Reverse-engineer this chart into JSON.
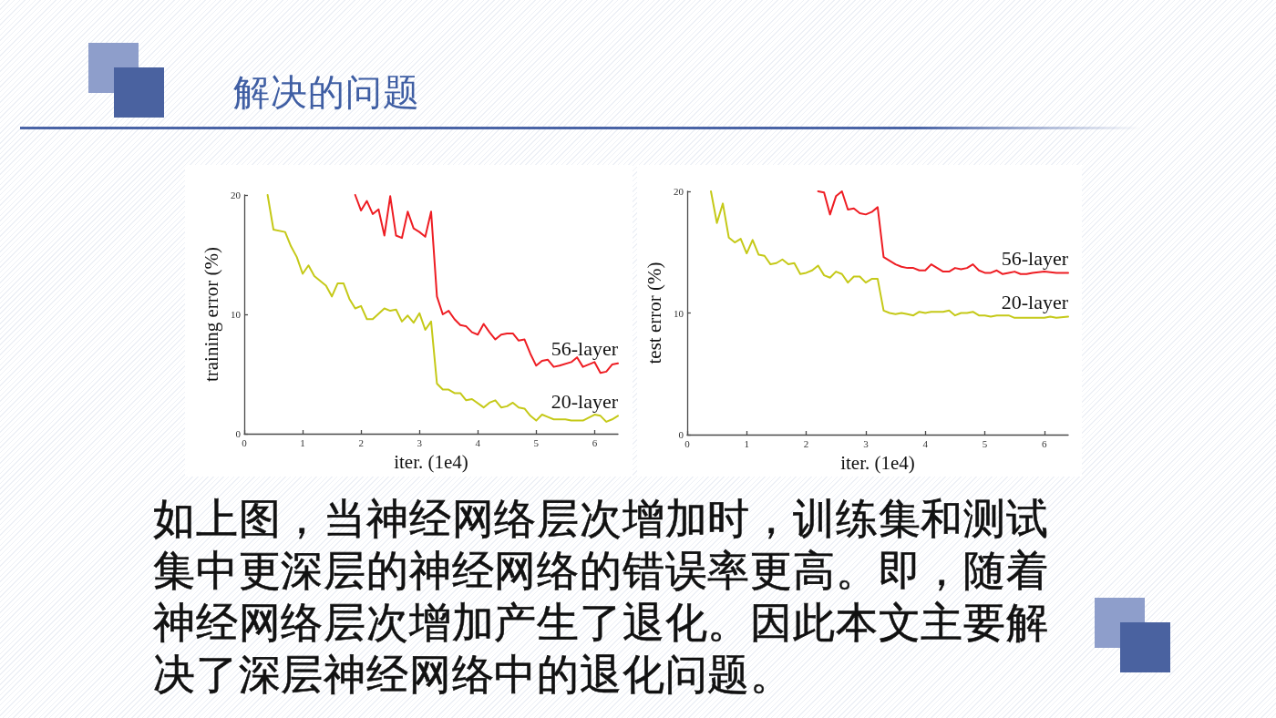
{
  "chart_data": [
    {
      "type": "line",
      "title": "解决的问题",
      "xlabel": "iter. (1e4)",
      "ylabel": "training error (%)",
      "xlim": [
        0,
        6.4
      ],
      "xticks": [
        0,
        1,
        2,
        3,
        4,
        5,
        6
      ],
      "ylim": [
        0,
        20
      ],
      "yticks": [
        0,
        10,
        20
      ],
      "grid": false,
      "legend": false,
      "marker": "none",
      "line_style": "solid",
      "series": [
        {
          "name": "56-layer",
          "color": "#ee1d23",
          "x": [
            1.9,
            2.0,
            2.1,
            2.2,
            2.3,
            2.4,
            2.5,
            2.6,
            2.7,
            2.8,
            2.9,
            3.0,
            3.1,
            3.2,
            3.3,
            3.4,
            3.5,
            3.6,
            3.7,
            3.8,
            3.9,
            4.0,
            4.1,
            4.2,
            4.3,
            4.4,
            4.5,
            4.6,
            4.7,
            4.8,
            4.9,
            5.0,
            5.1,
            5.2,
            5.3,
            5.4,
            5.6,
            5.7,
            5.8,
            6.0,
            6.1,
            6.2,
            6.3,
            6.4
          ],
          "values": [
            20,
            18.7,
            19.5,
            18.4,
            18.8,
            16.6,
            19.9,
            16.6,
            16.4,
            18.6,
            17.2,
            16.9,
            16.5,
            18.6,
            11.5,
            10.0,
            10.3,
            9.6,
            9.1,
            9.0,
            8.5,
            8.3,
            9.2,
            8.5,
            7.9,
            8.3,
            8.4,
            8.4,
            7.8,
            7.9,
            6.7,
            5.7,
            6.1,
            6.2,
            5.6,
            5.7,
            6.0,
            6.4,
            5.6,
            6.0,
            5.1,
            5.2,
            5.8,
            5.9
          ]
        },
        {
          "name": "20-layer",
          "color": "#c5c918",
          "x": [
            0.4,
            0.5,
            0.7,
            0.8,
            0.9,
            1.0,
            1.1,
            1.2,
            1.4,
            1.5,
            1.6,
            1.7,
            1.8,
            1.9,
            2.0,
            2.1,
            2.2,
            2.4,
            2.5,
            2.6,
            2.7,
            2.8,
            2.9,
            3.0,
            3.1,
            3.2,
            3.3,
            3.4,
            3.5,
            3.6,
            3.7,
            3.8,
            3.9,
            4.1,
            4.2,
            4.3,
            4.4,
            4.5,
            4.6,
            4.7,
            4.8,
            4.9,
            5.0,
            5.1,
            5.2,
            5.3,
            5.5,
            5.6,
            5.8,
            6.0,
            6.1,
            6.2,
            6.3,
            6.4
          ],
          "values": [
            20,
            17.1,
            16.9,
            15.7,
            14.8,
            13.4,
            14.1,
            13.2,
            12.4,
            11.5,
            12.6,
            12.6,
            11.3,
            10.5,
            10.7,
            9.6,
            9.6,
            10.5,
            10.3,
            10.4,
            9.4,
            9.9,
            9.3,
            10.1,
            8.7,
            9.4,
            4.2,
            3.7,
            3.7,
            3.4,
            3.4,
            2.8,
            2.9,
            2.2,
            2.6,
            2.8,
            2.2,
            2.3,
            2.6,
            2.2,
            2.1,
            1.5,
            1.1,
            1.6,
            1.4,
            1.2,
            1.2,
            1.1,
            1.1,
            1.6,
            1.5,
            1.0,
            1.2,
            1.5
          ]
        }
      ]
    },
    {
      "type": "line",
      "xlabel": "iter. (1e4)",
      "ylabel": "test error (%)",
      "xlim": [
        0,
        6.4
      ],
      "xticks": [
        0,
        1,
        2,
        3,
        4,
        5,
        6
      ],
      "ylim": [
        0,
        20
      ],
      "yticks": [
        0,
        10,
        20
      ],
      "grid": false,
      "legend": false,
      "marker": "none",
      "line_style": "solid",
      "annotations": [
        "如上图，当神经网络层次增加时，训练集和测试集中更深层的神经网络的错误率更高。即，随着神经网络层次增加产生了退化。因此本文主要解决了深层神经网络中的退化问题。"
      ],
      "series": [
        {
          "name": "56-layer",
          "color": "#ee1d23",
          "x": [
            2.2,
            2.3,
            2.4,
            2.5,
            2.6,
            2.7,
            2.8,
            2.9,
            3.0,
            3.1,
            3.2,
            3.3,
            3.4,
            3.5,
            3.6,
            3.7,
            3.8,
            3.9,
            4.0,
            4.1,
            4.2,
            4.3,
            4.4,
            4.5,
            4.6,
            4.7,
            4.8,
            4.9,
            5.0,
            5.1,
            5.2,
            5.3,
            5.4,
            5.5,
            5.6,
            5.7,
            5.8,
            6.0,
            6.2,
            6.4
          ],
          "values": [
            20,
            19.9,
            18.1,
            19.6,
            20.0,
            18.5,
            18.6,
            18.2,
            18.1,
            18.3,
            18.7,
            14.6,
            14.3,
            14.0,
            13.8,
            13.7,
            13.7,
            13.5,
            13.5,
            14.0,
            13.7,
            13.4,
            13.4,
            13.7,
            13.6,
            13.7,
            14.0,
            13.5,
            13.3,
            13.3,
            13.5,
            13.2,
            13.3,
            13.4,
            13.2,
            13.2,
            13.3,
            13.4,
            13.3,
            13.3
          ]
        },
        {
          "name": "20-layer",
          "color": "#c5c918",
          "x": [
            0.4,
            0.5,
            0.6,
            0.7,
            0.8,
            0.9,
            1.0,
            1.1,
            1.2,
            1.3,
            1.4,
            1.5,
            1.6,
            1.7,
            1.8,
            1.9,
            2.0,
            2.1,
            2.2,
            2.3,
            2.4,
            2.5,
            2.6,
            2.7,
            2.8,
            2.9,
            3.0,
            3.1,
            3.2,
            3.3,
            3.4,
            3.5,
            3.6,
            3.7,
            3.8,
            3.9,
            4.0,
            4.1,
            4.2,
            4.3,
            4.4,
            4.5,
            4.6,
            4.7,
            4.8,
            4.9,
            5.0,
            5.1,
            5.2,
            5.3,
            5.4,
            5.5,
            5.7,
            5.9,
            6.0,
            6.1,
            6.2,
            6.4
          ],
          "values": [
            20,
            17.4,
            19.0,
            16.2,
            15.8,
            16.1,
            14.9,
            16.0,
            14.8,
            14.7,
            14.0,
            14.1,
            14.4,
            14.0,
            14.1,
            13.2,
            13.3,
            13.5,
            13.9,
            13.1,
            12.9,
            13.4,
            13.2,
            12.5,
            13.0,
            13.0,
            12.5,
            12.8,
            12.8,
            10.2,
            10.0,
            9.9,
            10.0,
            9.9,
            9.8,
            10.1,
            10.0,
            10.1,
            10.1,
            10.1,
            10.2,
            9.8,
            10.0,
            10.0,
            10.1,
            9.8,
            9.8,
            9.7,
            9.8,
            9.8,
            9.8,
            9.6,
            9.6,
            9.6,
            9.6,
            9.7,
            9.6,
            9.7
          ]
        }
      ]
    }
  ]
}
